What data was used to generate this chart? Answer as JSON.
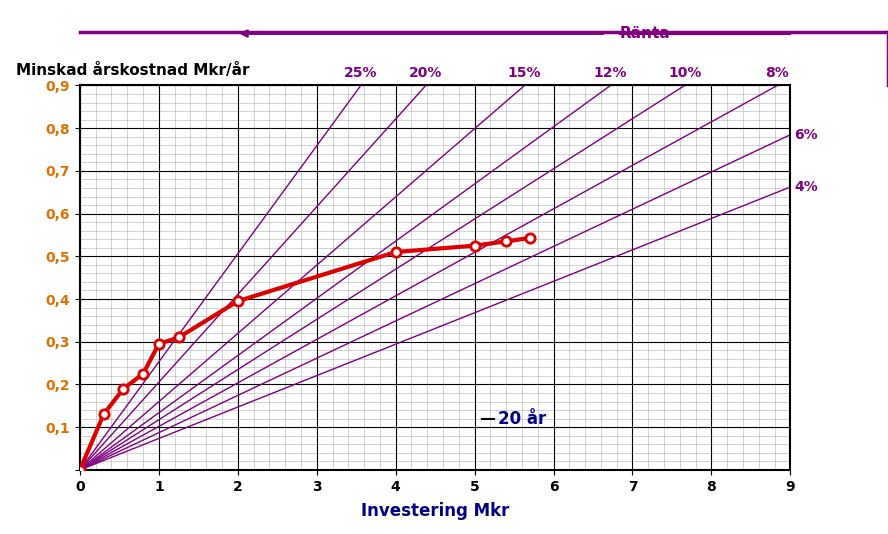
{
  "title_y": "Minskad årskostnad Mkr/år",
  "title_x": "Investering Mkr",
  "label_ranta": "Ränta",
  "label_year": "20 år",
  "xlim": [
    0,
    9
  ],
  "ylim": [
    0,
    0.9
  ],
  "xticks": [
    0,
    1,
    2,
    3,
    4,
    5,
    6,
    7,
    8,
    9
  ],
  "yticks": [
    0,
    0.1,
    0.2,
    0.3,
    0.4,
    0.5,
    0.6,
    0.7,
    0.8,
    0.9
  ],
  "ytick_labels": [
    "",
    "0,1",
    "0,2",
    "0,3",
    "0,4",
    "0,5",
    "0,6",
    "0,7",
    "0,8",
    "0,9"
  ],
  "purple_color": "#800080",
  "red_color": "#dd0000",
  "navy_color": "#000080",
  "rates": [
    0.04,
    0.06,
    0.08,
    0.1,
    0.12,
    0.15,
    0.2,
    0.25
  ],
  "rate_labels": [
    "4%",
    "6%",
    "8%",
    "10%",
    "12%",
    "15%",
    "20%",
    "25%"
  ],
  "n_years": 20,
  "red_points_x": [
    0.0,
    0.3,
    0.55,
    0.8,
    1.0,
    1.25,
    2.0,
    4.0,
    5.0,
    5.4,
    5.7
  ],
  "red_points_y": [
    0.0,
    0.13,
    0.19,
    0.225,
    0.295,
    0.31,
    0.395,
    0.51,
    0.525,
    0.535,
    0.543
  ],
  "bg_color": "#ffffff",
  "grid_major_color": "#000000",
  "grid_minor_color": "#c0c0c0",
  "ytick_color": "#e07000"
}
